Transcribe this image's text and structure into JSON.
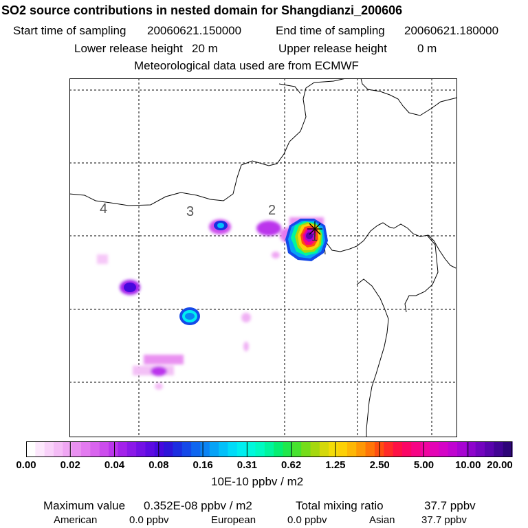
{
  "header": {
    "title": "SO2 source contributions in nested domain for Shangdianzi_200606",
    "start_label": "Start time of sampling",
    "start_value": "20060621.150000",
    "end_label": "End time of sampling",
    "end_value": "20060621.180000",
    "lower_label": "Lower release height",
    "lower_value": "20 m",
    "upper_label": "Upper release height",
    "upper_value": "0 m",
    "met": "Meteorological data used are from ECMWF"
  },
  "map": {
    "region_labels": [
      "4",
      "3",
      "2",
      "1"
    ],
    "marker": "Shangdianzi receptor star"
  },
  "colorbar": {
    "ticks": [
      "0.00",
      "0.02",
      "0.04",
      "0.08",
      "0.16",
      "0.31",
      "0.62",
      "1.25",
      "2.50",
      "5.00",
      "10.00",
      "20.00"
    ],
    "unit": "10E-10 ppbv / m2",
    "colors": [
      "#ffffff",
      "#fde8fd",
      "#f9d2fa",
      "#f4bcf6",
      "#efa6f3",
      "#e990f1",
      "#e37af0",
      "#d964ee",
      "#cc4ded",
      "#bb36ec",
      "#a322ea",
      "#8b19e8",
      "#7311e5",
      "#5c0be2",
      "#4609de",
      "#2d15d9",
      "#1c2ee0",
      "#1549e8",
      "#0f66ef",
      "#0a84f4",
      "#06a3f7",
      "#03c0f9",
      "#01dbf8",
      "#00eef0",
      "#00f8dc",
      "#00fac2",
      "#00f59e",
      "#05ee72",
      "#20e84c",
      "#47e22e",
      "#75dc1a",
      "#a5d80f",
      "#d4d80a",
      "#f3dc07",
      "#fcd006",
      "#fdb706",
      "#fe9806",
      "#ff7508",
      "#ff4e10",
      "#ff2b28",
      "#fe1145",
      "#fb0665",
      "#f70484",
      "#f004a0",
      "#e404b6",
      "#d404c6",
      "#c004d0",
      "#a804d2",
      "#8e04cc",
      "#7304bf",
      "#5a04ad",
      "#420494",
      "#2d0478"
    ]
  },
  "footer": {
    "max_label": "Maximum value",
    "max_value": "0.352E-08 ppbv / m2",
    "total_label": "Total mixing ratio",
    "total_value": "37.7 ppbv",
    "american_label": "American",
    "american_value": "0.0 ppbv",
    "european_label": "European",
    "european_value": "0.0 ppbv",
    "asian_label": "Asian",
    "asian_value": "37.7 ppbv"
  }
}
